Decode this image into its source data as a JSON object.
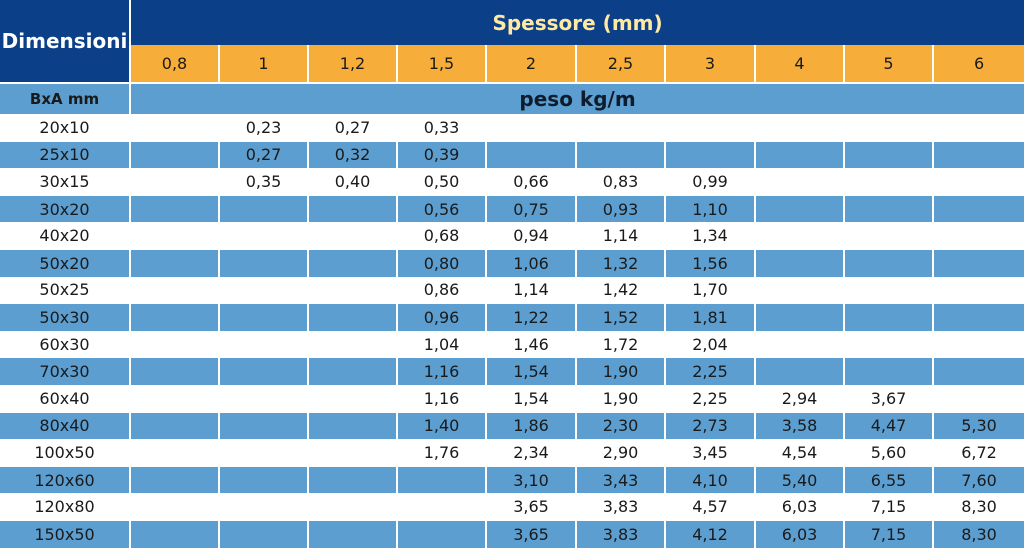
{
  "header": {
    "dimensions_label": "Dimensioni",
    "thickness_title": "Spessore (mm)",
    "size_unit": "BxA mm",
    "weight_unit": "peso kg/m"
  },
  "thicknesses": [
    "0,8",
    "1",
    "1,2",
    "1,5",
    "2",
    "2,5",
    "3",
    "4",
    "5",
    "6"
  ],
  "rows": [
    {
      "size": "20x10",
      "values": [
        "",
        "0,23",
        "0,27",
        "0,33",
        "",
        "",
        "",
        "",
        "",
        ""
      ]
    },
    {
      "size": "25x10",
      "values": [
        "",
        "0,27",
        "0,32",
        "0,39",
        "",
        "",
        "",
        "",
        "",
        ""
      ]
    },
    {
      "size": "30x15",
      "values": [
        "",
        "0,35",
        "0,40",
        "0,50",
        "0,66",
        "0,83",
        "0,99",
        "",
        "",
        ""
      ]
    },
    {
      "size": "30x20",
      "values": [
        "",
        "",
        "",
        "0,56",
        "0,75",
        "0,93",
        "1,10",
        "",
        "",
        ""
      ]
    },
    {
      "size": "40x20",
      "values": [
        "",
        "",
        "",
        "0,68",
        "0,94",
        "1,14",
        "1,34",
        "",
        "",
        ""
      ]
    },
    {
      "size": "50x20",
      "values": [
        "",
        "",
        "",
        "0,80",
        "1,06",
        "1,32",
        "1,56",
        "",
        "",
        ""
      ]
    },
    {
      "size": "50x25",
      "values": [
        "",
        "",
        "",
        "0,86",
        "1,14",
        "1,42",
        "1,70",
        "",
        "",
        ""
      ]
    },
    {
      "size": "50x30",
      "values": [
        "",
        "",
        "",
        "0,96",
        "1,22",
        "1,52",
        "1,81",
        "",
        "",
        ""
      ]
    },
    {
      "size": "60x30",
      "values": [
        "",
        "",
        "",
        "1,04",
        "1,46",
        "1,72",
        "2,04",
        "",
        "",
        ""
      ]
    },
    {
      "size": "70x30",
      "values": [
        "",
        "",
        "",
        "1,16",
        "1,54",
        "1,90",
        "2,25",
        "",
        "",
        ""
      ]
    },
    {
      "size": "60x40",
      "values": [
        "",
        "",
        "",
        "1,16",
        "1,54",
        "1,90",
        "2,25",
        "2,94",
        "3,67",
        ""
      ]
    },
    {
      "size": "80x40",
      "values": [
        "",
        "",
        "",
        "1,40",
        "1,86",
        "2,30",
        "2,73",
        "3,58",
        "4,47",
        "5,30"
      ]
    },
    {
      "size": "100x50",
      "values": [
        "",
        "",
        "",
        "1,76",
        "2,34",
        "2,90",
        "3,45",
        "4,54",
        "5,60",
        "6,72"
      ]
    },
    {
      "size": "120x60",
      "values": [
        "",
        "",
        "",
        "",
        "3,10",
        "3,43",
        "4,10",
        "5,40",
        "6,55",
        "7,60"
      ]
    },
    {
      "size": "120x80",
      "values": [
        "",
        "",
        "",
        "",
        "3,65",
        "3,83",
        "4,57",
        "6,03",
        "7,15",
        "8,30"
      ]
    },
    {
      "size": "150x50",
      "values": [
        "",
        "",
        "",
        "",
        "3,65",
        "3,83",
        "4,12",
        "6,03",
        "7,15",
        "8,30"
      ]
    }
  ]
}
